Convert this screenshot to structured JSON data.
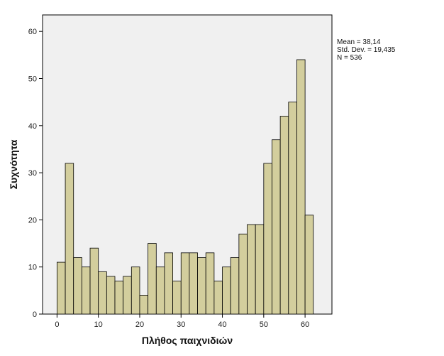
{
  "chart_data": {
    "type": "bar",
    "subtype": "histogram",
    "title": "",
    "xlabel": "Πλήθος παιχνιδιών",
    "ylabel": "Συχνότητα",
    "xlim": [
      -3.5,
      66.5
    ],
    "ylim": [
      0,
      63.5
    ],
    "x_ticks": [
      0,
      10,
      20,
      30,
      40,
      50,
      60
    ],
    "y_ticks": [
      0,
      10,
      20,
      30,
      40,
      50,
      60
    ],
    "bin_width": 2,
    "bin_starts": [
      0,
      2,
      4,
      6,
      8,
      10,
      12,
      14,
      16,
      18,
      20,
      22,
      24,
      26,
      28,
      30,
      32,
      34,
      36,
      38,
      40,
      42,
      44,
      46,
      48,
      50,
      52,
      54,
      56,
      58,
      60
    ],
    "values": [
      11,
      32,
      12,
      10,
      14,
      9,
      8,
      7,
      8,
      10,
      4,
      15,
      10,
      13,
      7,
      13,
      13,
      12,
      13,
      7,
      10,
      12,
      17,
      19,
      19,
      32,
      37,
      42,
      45,
      54,
      21
    ],
    "bar_color": "#d3ce9d",
    "bar_edge_color": "#000000",
    "plot_background": "#f0f0f0",
    "grid": false,
    "legend_placement": "top-right",
    "stats": [
      "Mean = 38,14",
      "Std. Dev. = 19,435",
      "N = 536"
    ]
  }
}
